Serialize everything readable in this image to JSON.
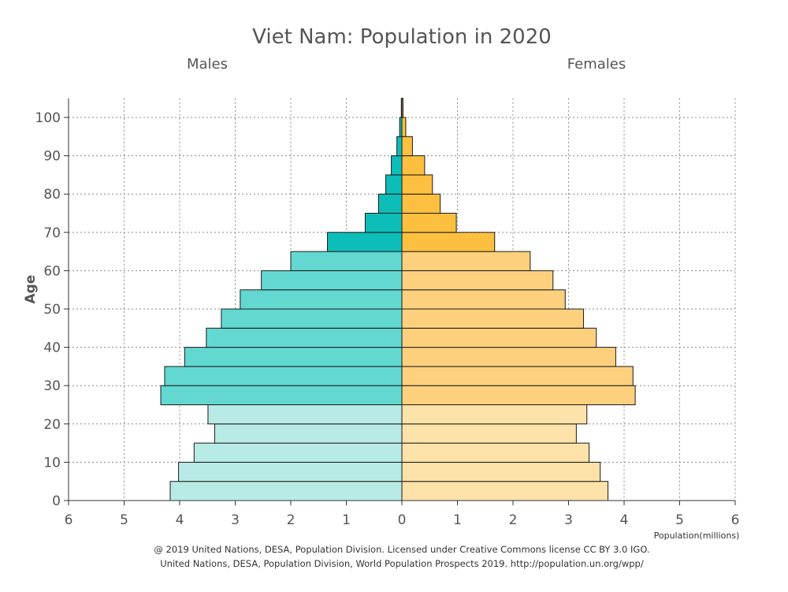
{
  "chart_data": {
    "type": "bar",
    "orientation": "horizontal",
    "title": "Viet Nam: Population in 2020",
    "left_label": "Males",
    "right_label": "Females",
    "ylabel": "Age",
    "xlabel": "Population(millions)",
    "xlim": [
      -6,
      6
    ],
    "ylim": [
      0,
      105
    ],
    "x_ticks": [
      "6",
      "5",
      "4",
      "3",
      "2",
      "1",
      "0",
      "1",
      "2",
      "3",
      "4",
      "5",
      "6"
    ],
    "y_ticks": [
      "0",
      "10",
      "20",
      "30",
      "40",
      "50",
      "60",
      "70",
      "80",
      "90",
      "100"
    ],
    "grid": true,
    "age_groups": [
      "0-4",
      "5-9",
      "10-14",
      "15-19",
      "20-24",
      "25-29",
      "30-34",
      "35-39",
      "40-44",
      "45-49",
      "50-54",
      "55-59",
      "60-64",
      "65-69",
      "70-74",
      "75-79",
      "80-84",
      "85-89",
      "90-94",
      "95-99",
      "100+"
    ],
    "series": [
      {
        "name": "Males",
        "values": [
          4.17,
          4.02,
          3.74,
          3.37,
          3.49,
          4.34,
          4.27,
          3.91,
          3.52,
          3.25,
          2.91,
          2.53,
          2.0,
          1.34,
          0.66,
          0.42,
          0.29,
          0.19,
          0.09,
          0.04,
          0.01
        ],
        "colors": {
          "young": "#b9ebe6",
          "working": "#62d8d1",
          "old": "#0dbdb8"
        }
      },
      {
        "name": "Females",
        "values": [
          3.71,
          3.57,
          3.37,
          3.14,
          3.33,
          4.2,
          4.16,
          3.85,
          3.5,
          3.27,
          2.94,
          2.72,
          2.31,
          1.67,
          0.98,
          0.69,
          0.55,
          0.41,
          0.19,
          0.07,
          0.02
        ],
        "colors": {
          "young": "#fde2a9",
          "working": "#fdd07d",
          "old": "#fcbf40"
        }
      }
    ],
    "color_groups": {
      "young_max_index": 4,
      "working_max_index": 12
    }
  },
  "footer": {
    "line1": "@ 2019 United Nations, DESA, Population Division. Licensed under Creative Commons license CC BY 3.0 IGO.",
    "line2": "United Nations, DESA, Population Division, World Population Prospects 2019. http://population.un.org/wpp/"
  }
}
